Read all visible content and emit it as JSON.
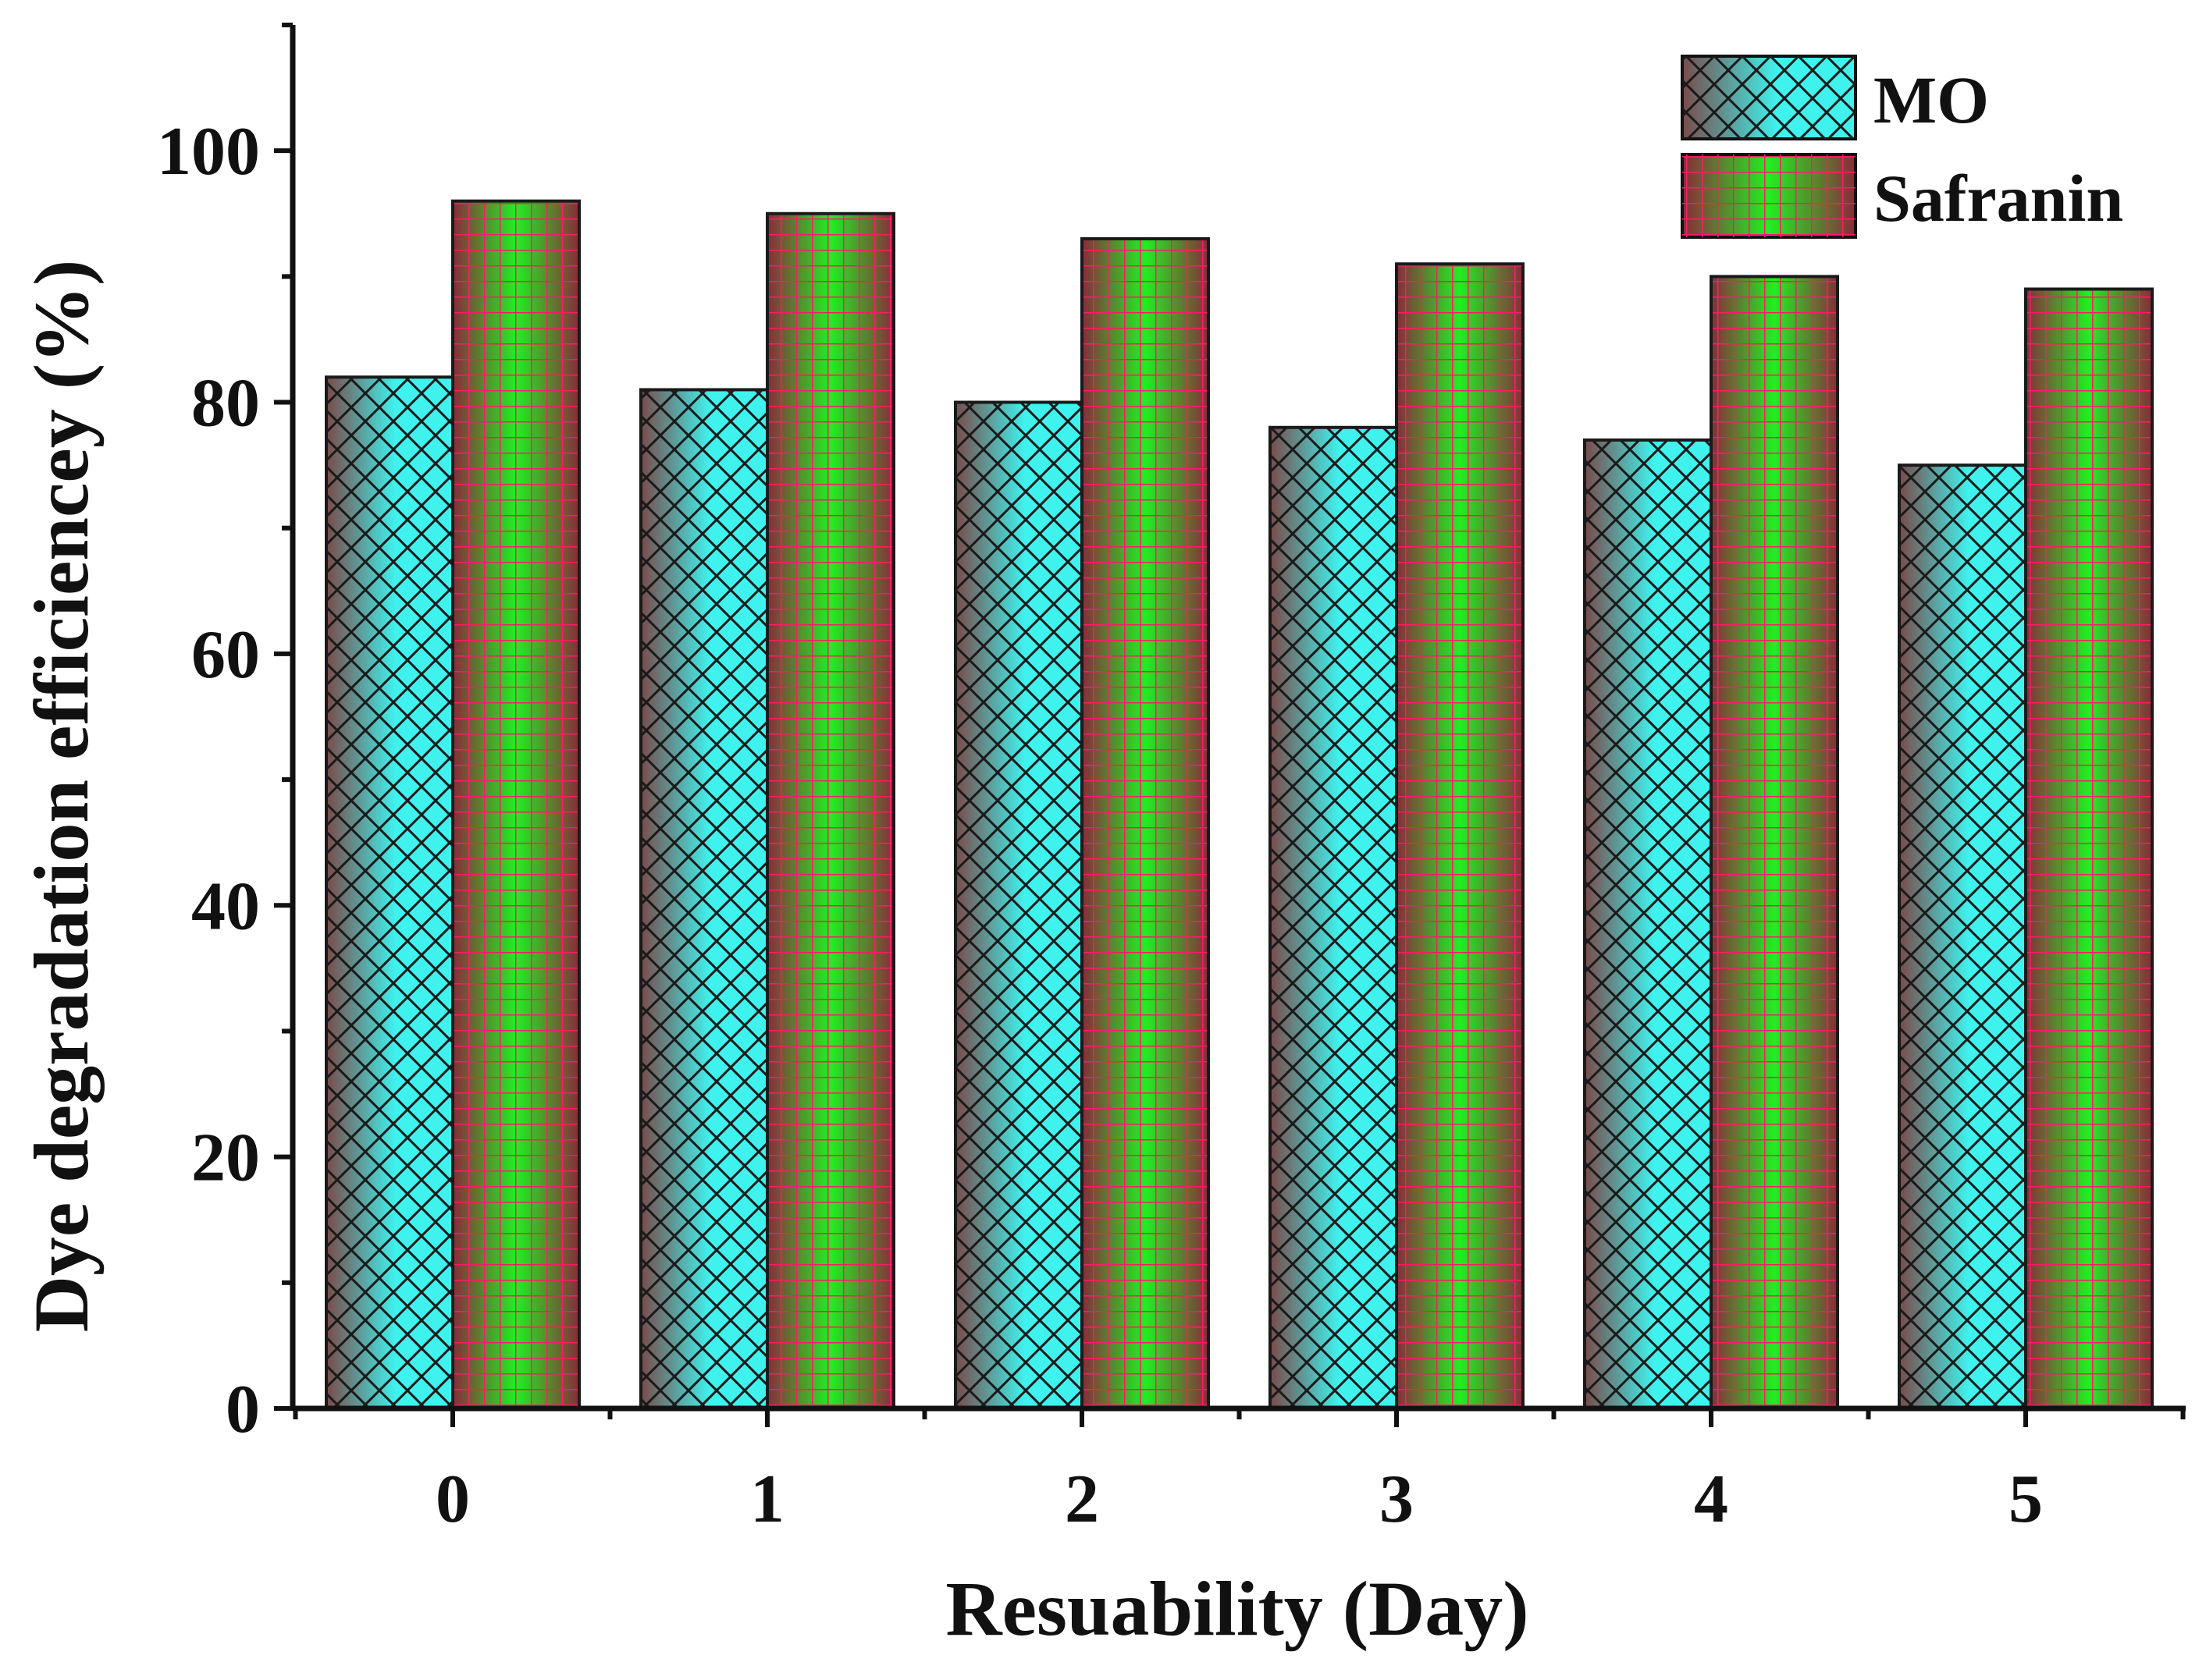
{
  "chart_data": {
    "type": "bar",
    "title": "",
    "xlabel": "Resuability (Day)",
    "ylabel": "Dye degradation efficiencey (%)",
    "categories": [
      "0",
      "1",
      "2",
      "3",
      "4",
      "5"
    ],
    "series": [
      {
        "name": "MO",
        "values": [
          82,
          81,
          80,
          78,
          77,
          75
        ]
      },
      {
        "name": "Safranin",
        "values": [
          96,
          95,
          93,
          91,
          90,
          89
        ]
      }
    ],
    "ylim": [
      0,
      110
    ],
    "yticks": [
      0,
      20,
      40,
      60,
      80,
      100
    ],
    "yticks_labels": [
      "0",
      "20",
      "40",
      "60",
      "80",
      "100"
    ],
    "grid": false,
    "legend_position": "top-right",
    "colors": {
      "mo_light": "#3ff2ee",
      "mo_dark": "#7a4a4a",
      "safranin_light": "#22ee22",
      "safranin_dark": "#8a2a3a",
      "safranin_grid": "#ff1a66",
      "axis": "#111111"
    }
  }
}
